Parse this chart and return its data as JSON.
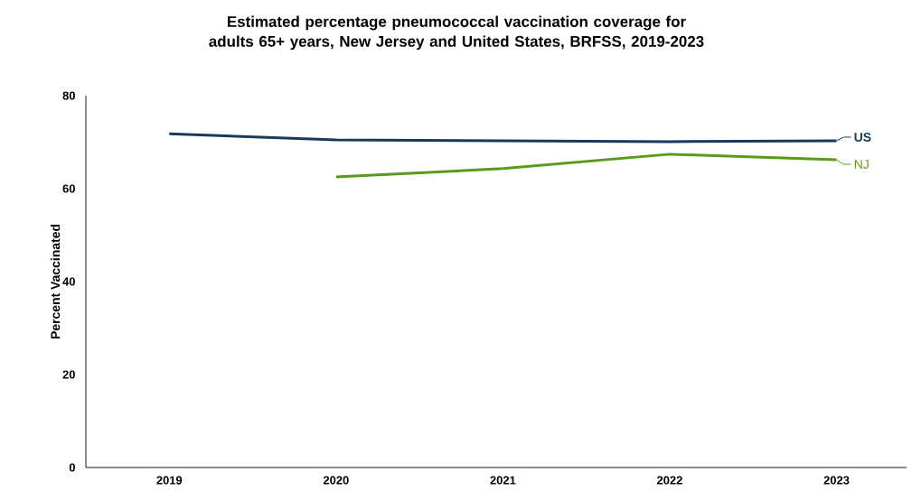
{
  "chart_data": {
    "type": "line",
    "title": "Estimated percentage pneumococcal vaccination coverage for adults 65+ years, New Jersey and United States, BRFSS, 2019-2023",
    "ylabel": "Percent Vaccinated",
    "categories": [
      "2019",
      "2020",
      "2021",
      "2022",
      "2023"
    ],
    "series": [
      {
        "name": "US",
        "color": "#1b3a57",
        "values": [
          71.8,
          70.5,
          70.3,
          70.1,
          70.3
        ]
      },
      {
        "name": "NJ",
        "color": "#5a9a1a",
        "values": [
          null,
          62.5,
          64.3,
          67.4,
          66.2
        ]
      }
    ],
    "ylim": [
      0,
      80
    ],
    "yticks": [
      0,
      20,
      40,
      60,
      80
    ],
    "grid": false,
    "legend": "right"
  }
}
